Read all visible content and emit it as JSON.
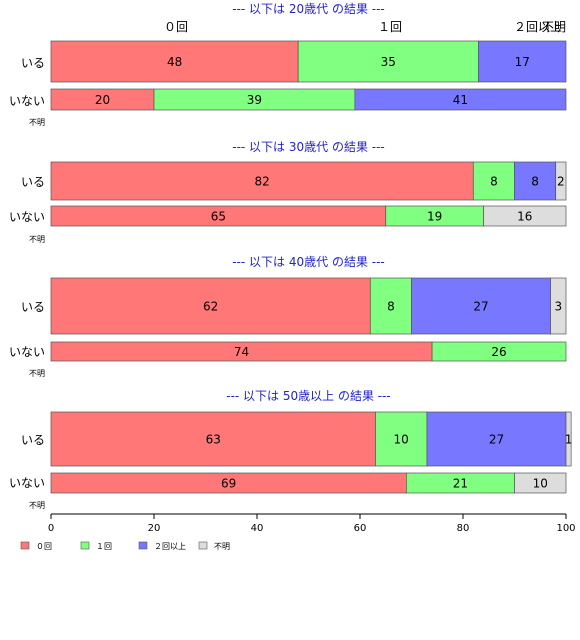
{
  "chart_data": {
    "type": "bar",
    "orientation": "horizontal",
    "stacked": true,
    "xlim": [
      0,
      100
    ],
    "x_ticks": [
      0,
      20,
      40,
      60,
      80,
      100
    ],
    "grid": false,
    "legend_position": "bottom-left",
    "column_labels": [
      "０回",
      "１回",
      "２回以上",
      "不明"
    ],
    "series": [
      {
        "name": "０回",
        "color": "#ff7777"
      },
      {
        "name": "１回",
        "color": "#80ff80"
      },
      {
        "name": "２回以上",
        "color": "#7777ff"
      },
      {
        "name": "不明",
        "color": "#dddddd"
      }
    ],
    "panels": [
      {
        "title": "--- 以下は 20歳代 の結果 ---",
        "rows": [
          {
            "label": "いる",
            "values": [
              48,
              35,
              17,
              0
            ]
          },
          {
            "label": "いない",
            "values": [
              20,
              39,
              41,
              0
            ]
          },
          {
            "label": "不明",
            "values": [
              0,
              0,
              0,
              0
            ]
          }
        ]
      },
      {
        "title": "--- 以下は 30歳代 の結果 ---",
        "rows": [
          {
            "label": "いる",
            "values": [
              82,
              8,
              8,
              2
            ]
          },
          {
            "label": "いない",
            "values": [
              65,
              19,
              0,
              16
            ]
          },
          {
            "label": "不明",
            "values": [
              0,
              0,
              0,
              0
            ]
          }
        ]
      },
      {
        "title": "--- 以下は 40歳代 の結果 ---",
        "rows": [
          {
            "label": "いる",
            "values": [
              62,
              8,
              27,
              3
            ]
          },
          {
            "label": "いない",
            "values": [
              74,
              26,
              0,
              0
            ]
          },
          {
            "label": "不明",
            "values": [
              0,
              0,
              0,
              0
            ]
          }
        ]
      },
      {
        "title": "--- 以下は 50歳以上 の結果 ---",
        "rows": [
          {
            "label": "いる",
            "values": [
              63,
              10,
              27,
              1
            ]
          },
          {
            "label": "いない",
            "values": [
              69,
              21,
              0,
              10
            ]
          },
          {
            "label": "不明",
            "values": [
              0,
              0,
              0,
              0
            ]
          }
        ]
      }
    ]
  }
}
